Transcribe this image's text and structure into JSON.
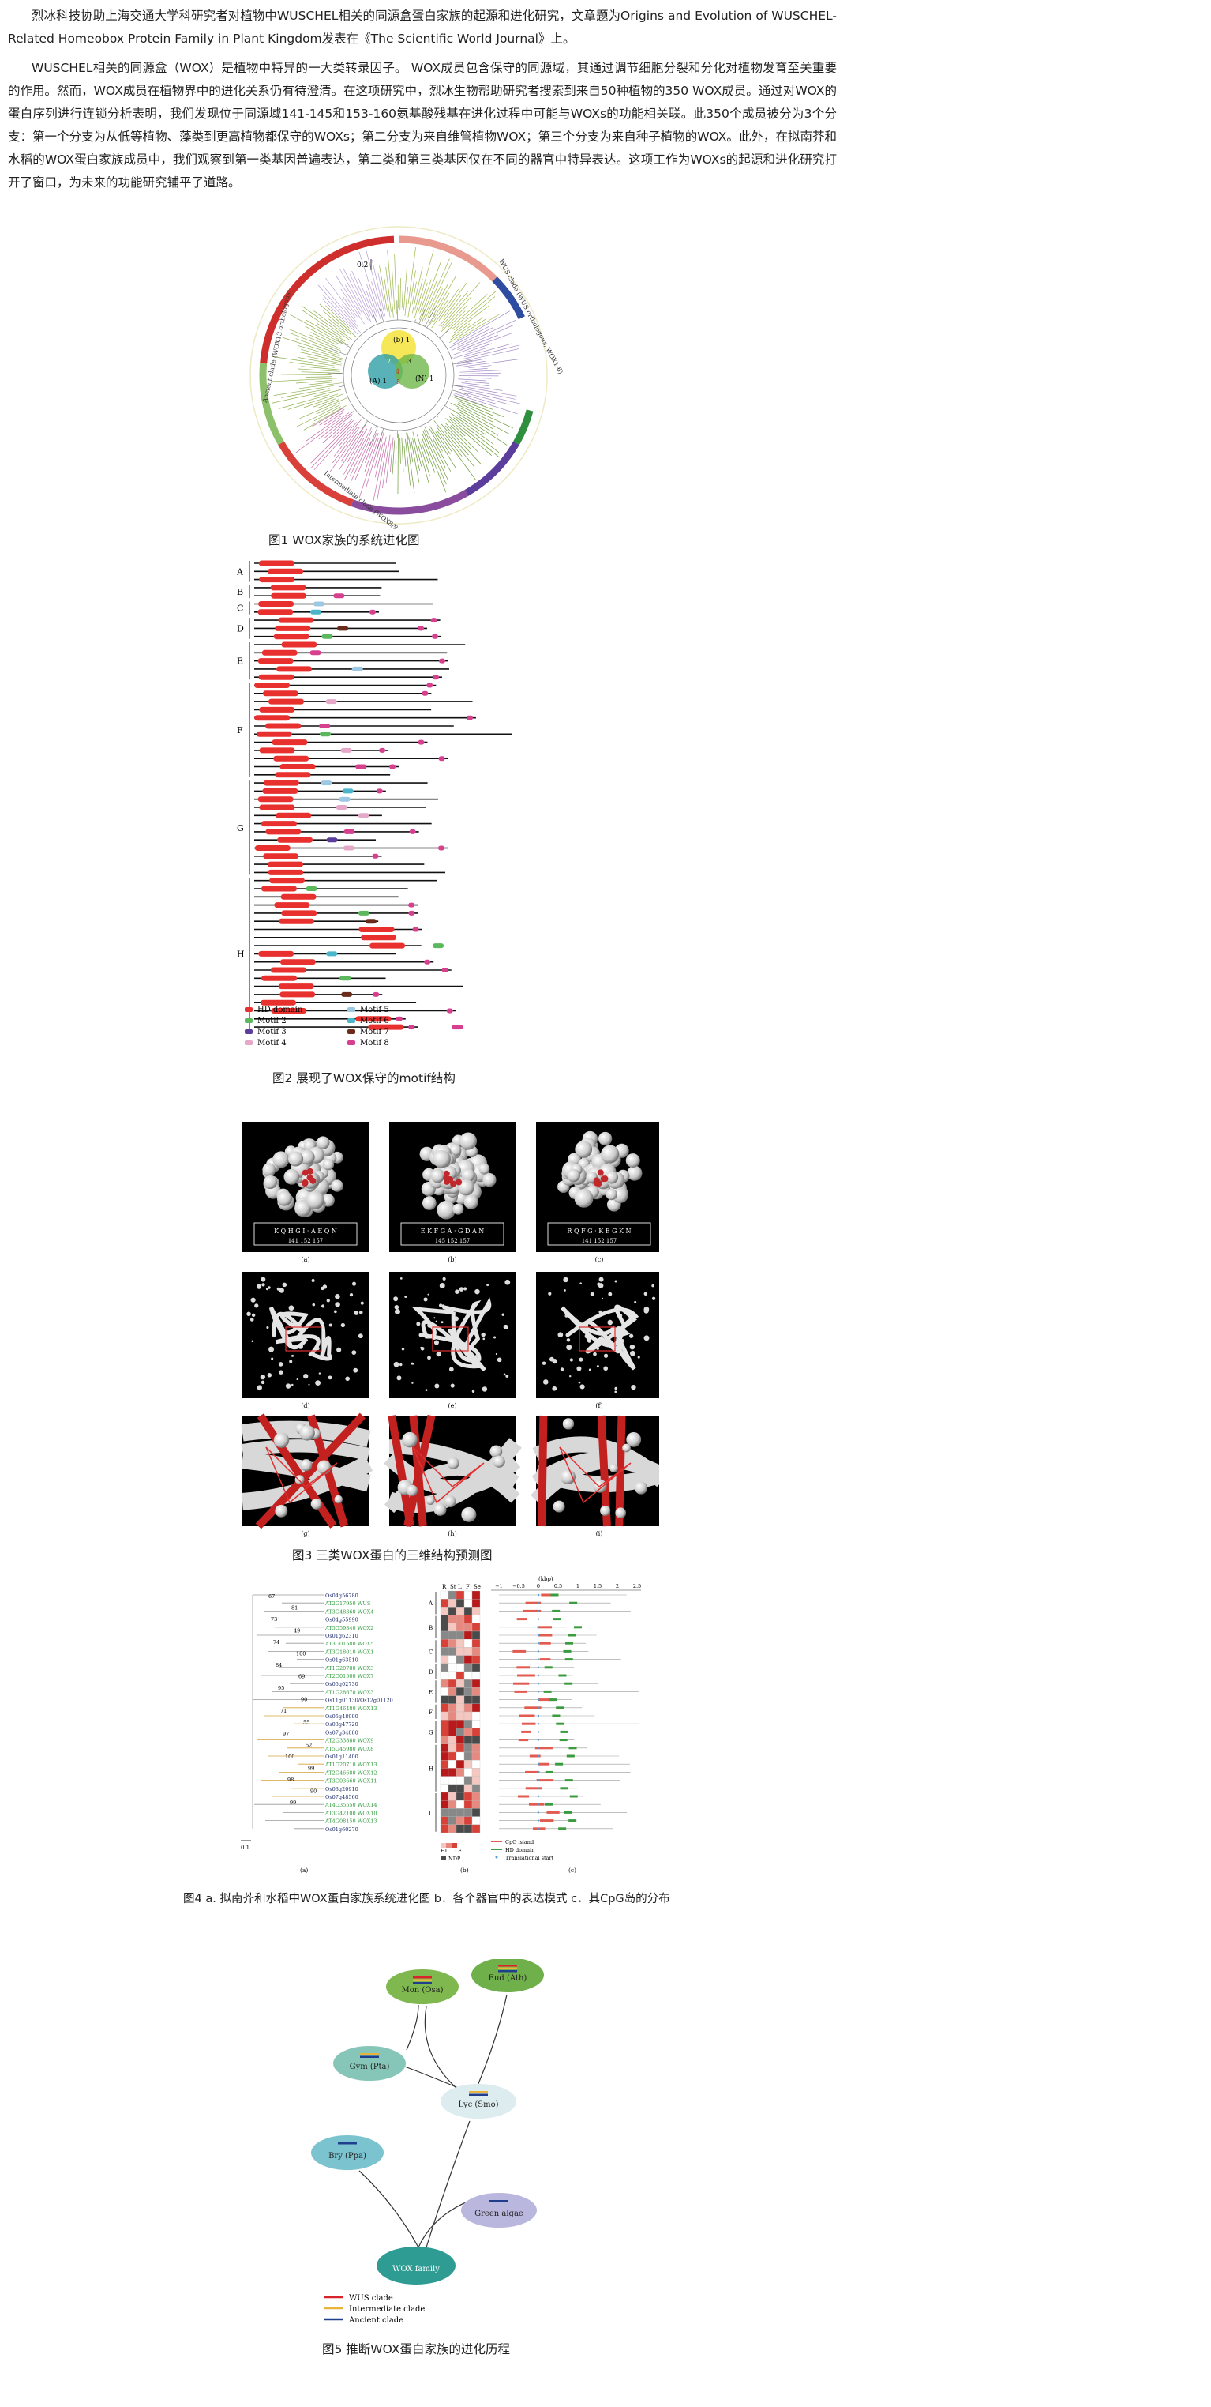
{
  "intro": {
    "p1": "烈冰科技协助上海交通大学科研究者对植物中WUSCHEL相关的同源盒蛋白家族的起源和进化研究，文章题为Origins and Evolution of WUSCHEL-Related Homeobox Protein Family in Plant Kingdom发表在《The Scientific World Journal》上。",
    "p2": "WUSCHEL相关的同源盒（WOX）是植物中特异的一大类转录因子。 WOX成员包含保守的同源域，其通过调节细胞分裂和分化对植物发育至关重要的作用。然而，WOX成员在植物界中的进化关系仍有待澄清。在这项研究中，烈冰生物帮助研究者搜索到来自50种植物的350 WOX成员。通过对WOX的蛋白序列进行连锁分析表明，我们发现位于同源域141-145和153-160氨基酸残基在进化过程中可能与WOXs的功能相关联。此350个成员被分为3个分支：第一个分支为从低等植物、藻类到更高植物都保守的WOXs；第二分支为来自维管植物WOX；第三个分支为来自种子植物的WOX。此外，在拟南芥和水稻的WOX蛋白家族成员中，我们观察到第一类基因普遍表达，第二类和第三类基因仅在不同的器官中特异表达。这项工作为WOXs的起源和进化研究打开了窗口，为未来的功能研究铺平了道路。"
  },
  "fig1": {
    "caption": "图1 WOX家族的系统进化图",
    "scale": "0.2",
    "arc_labels": [
      "Ancient clade (WOX13 orthologous)",
      "WUS clade (WUS orthologous, WOX1-6)",
      "Intermediate clade (WOX8/9, WOX11/12)"
    ],
    "venn": [
      "(b) 1",
      "(A) 1",
      "(N) 1",
      "2",
      "3",
      "4",
      "5"
    ]
  },
  "fig2": {
    "caption": "图2 展现了WOX保守的motif结构",
    "groups": [
      "A",
      "B",
      "C",
      "D",
      "E",
      "F",
      "G",
      "H"
    ],
    "legend": [
      {
        "label": "HD domain",
        "color": "#e8312f"
      },
      {
        "label": "Motif 2",
        "color": "#5cb85c"
      },
      {
        "label": "Motif 3",
        "color": "#5b3d9c"
      },
      {
        "label": "Motif 4",
        "color": "#e6a8c8"
      },
      {
        "label": "Motif 5",
        "color": "#9cc8e4"
      },
      {
        "label": "Motif 6",
        "color": "#4bb5c9"
      },
      {
        "label": "Motif 7",
        "color": "#6b2b1a"
      },
      {
        "label": "Motif 8",
        "color": "#d6408f"
      }
    ]
  },
  "fig3": {
    "caption": "图3 三类WOX蛋白的三维结构预测图",
    "seqs": [
      {
        "seq": "K Q H G I · A E Q N",
        "nums": "141     152     157"
      },
      {
        "seq": "E K F G A · G D A N",
        "nums": "145     152     157"
      },
      {
        "seq": "R Q F G · K E G K N",
        "nums": "141     152     157"
      }
    ],
    "sublabels": [
      "(a)",
      "(b)",
      "(c)",
      "(d)",
      "(e)",
      "(f)",
      "(g)",
      "(h)",
      "(i)"
    ]
  },
  "fig4": {
    "caption": "图4 a. 拟南芥和水稻中WOX蛋白家族系统进化图 b．各个器官中的表达模式 c．其CpG岛的分布",
    "genes": [
      "Os04g56780",
      "AT2G17950 WUS",
      "AT3G48360 WOX4",
      "Os04g55990",
      "AT5G59340 WOX2",
      "Os01g62310",
      "AT3G01580 WOX5",
      "AT3G18010 WOX1",
      "Os01g63510",
      "AT1G20700 WOX3",
      "AT2G01500 WOX7",
      "Os05g02730",
      "AT1G28670 WOX3",
      "Os11g01130/Os12g01120",
      "AT1G46480 WOX13",
      "Os05g48990",
      "Os03g47720",
      "Os07g34880",
      "AT2G33880 WOX9",
      "AT5G45980 WOX8",
      "Os01g11400",
      "AT1G20710 WOX13",
      "AT2G46680 WOX12",
      "AT3G03660 WOX11",
      "Os03g20910",
      "Os07g48560",
      "AT4G35550 WOX14",
      "AT3G42100 WOX10",
      "AT4G08150 WOX13",
      "Os01g60270"
    ],
    "bootstraps": [
      "67",
      "81",
      "73",
      "49",
      "74",
      "100",
      "84",
      "69",
      "95",
      "90",
      "71",
      "55",
      "97",
      "52",
      "100",
      "99",
      "98",
      "90",
      "99"
    ],
    "col_headers": [
      "R",
      "St",
      "L",
      "F",
      "Se"
    ],
    "groups": [
      "A",
      "B",
      "C",
      "D",
      "E",
      "F",
      "G",
      "H",
      "I"
    ],
    "axis_unit": "(kbp)",
    "axis_ticks": [
      "−1",
      "−0.5",
      "0",
      "0.5",
      "1",
      "1.5",
      "2",
      "2.5"
    ],
    "heat_legend": [
      "HI",
      "LE",
      "NDP"
    ],
    "track_legend": [
      "CpG island",
      "HD domain",
      "Translational start"
    ],
    "scale": "0.1",
    "panel_labels": [
      "(a)",
      "(b)",
      "(c)"
    ]
  },
  "fig5": {
    "caption": "图5 推断WOX蛋白家族的进化历程",
    "nodes": [
      "Mon (Osa)",
      "Eud (Ath)",
      "Gym (Pta)",
      "Lyc (Smo)",
      "Bry (Ppa)",
      "Green algae",
      "WOX family"
    ],
    "legend": [
      {
        "label": "WUS clade",
        "color": "#d9232a"
      },
      {
        "label": "Intermediate clade",
        "color": "#e8b43c"
      },
      {
        "label": "Ancient clade",
        "color": "#1f3f8c"
      }
    ]
  }
}
